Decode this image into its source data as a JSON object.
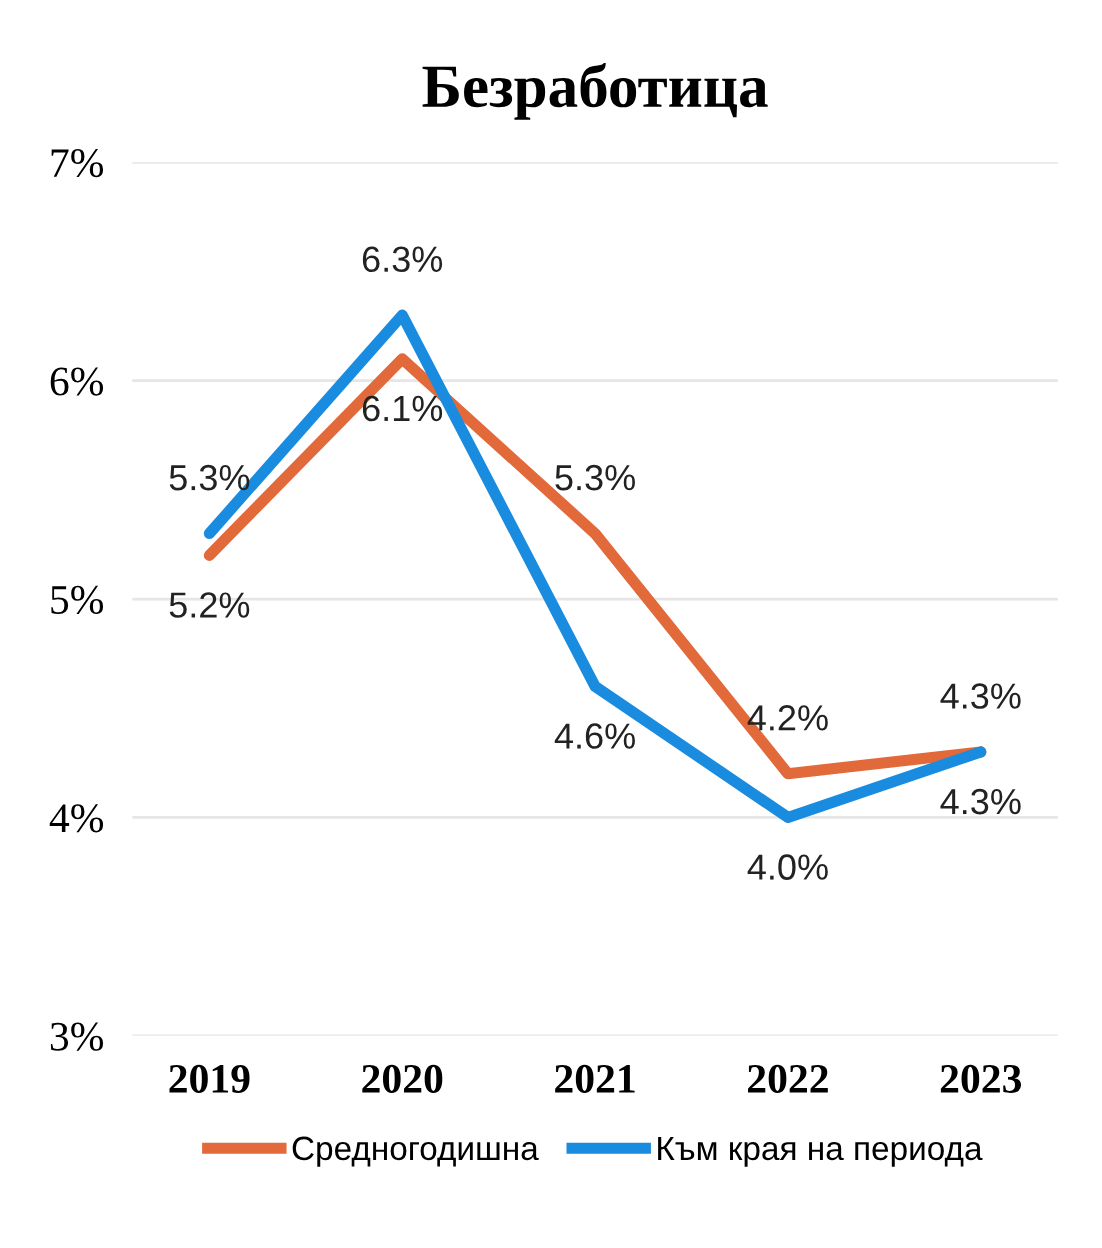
{
  "chart_data": {
    "type": "line",
    "title": "Безработица",
    "categories": [
      "2019",
      "2020",
      "2021",
      "2022",
      "2023"
    ],
    "series": [
      {
        "name": "Средногодишна",
        "color": "#e2693a",
        "values": [
          5.2,
          6.1,
          5.3,
          4.2,
          4.3
        ],
        "value_labels": [
          "5.2%",
          "6.1%",
          "5.3%",
          "4.2%",
          "4.3%"
        ]
      },
      {
        "name": "Към края на периода",
        "color": "#1a8ce0",
        "values": [
          5.3,
          6.3,
          4.6,
          4.0,
          4.3
        ],
        "value_labels": [
          "5.3%",
          "6.3%",
          "4.6%",
          "4.0%",
          "4.3%"
        ]
      }
    ],
    "ylim": [
      3,
      7
    ],
    "yticks": [
      {
        "value": 3,
        "label": "3%"
      },
      {
        "value": 4,
        "label": "4%"
      },
      {
        "value": 5,
        "label": "5%"
      },
      {
        "value": 6,
        "label": "6%"
      },
      {
        "value": 7,
        "label": "7%"
      }
    ],
    "grid": "y",
    "legend": "bottom",
    "marker": "none",
    "line_style": "solid"
  }
}
